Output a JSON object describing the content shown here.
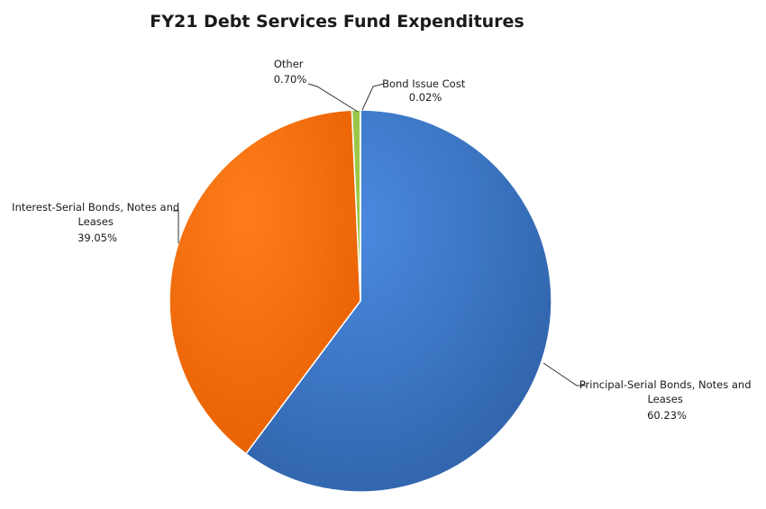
{
  "chart_data": {
    "type": "pie",
    "title": "FY21 Debt Services Fund Expenditures",
    "slices": [
      {
        "label_lines": [
          "Principal-Serial Bonds, Notes and",
          "Leases"
        ],
        "percent_label": "60.23%",
        "value": 60.23,
        "color": "#3d77c4"
      },
      {
        "label_lines": [
          "Interest-Serial Bonds, Notes and",
          "Leases"
        ],
        "percent_label": "39.05%",
        "value": 39.05,
        "color": "#f06c0a"
      },
      {
        "label_lines": [
          "Other"
        ],
        "percent_label": "0.70%",
        "value": 0.7,
        "color": "#9bc748"
      },
      {
        "label_lines": [
          "Bond Issue Cost"
        ],
        "percent_label": "0.02%",
        "value": 0.02,
        "color": "#3c5f9c"
      }
    ]
  }
}
